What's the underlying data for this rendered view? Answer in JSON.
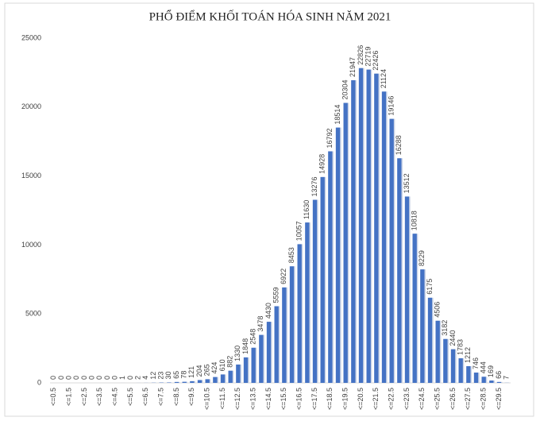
{
  "chart_data": {
    "type": "bar",
    "title": "PHỔ ĐIỂM KHỐI TOÁN HÓA SINH NĂM 2021",
    "categories": [
      "<=0.5",
      null,
      "<=1.5",
      null,
      "<=2.5",
      null,
      "<=3.5",
      null,
      "<=4.5",
      null,
      "<=5.5",
      null,
      "<=6.5",
      null,
      "<=7.5",
      null,
      "<=8.5",
      null,
      "<=9.5",
      null,
      "<=10.5",
      null,
      "<=11.5",
      null,
      "<=12.5",
      null,
      "<=13.5",
      null,
      "<=14.5",
      null,
      "<=15.5",
      null,
      "<=16.5",
      null,
      "<=17.5",
      null,
      "<=18.5",
      null,
      "<=19.5",
      null,
      "<=20.5",
      null,
      "<=21.5",
      null,
      "<=22.5",
      null,
      "<=23.5",
      null,
      "<=24.5",
      null,
      "<=25.5",
      null,
      "<=26.5",
      null,
      "<=27.5",
      null,
      "<=28.5",
      null,
      "<=29.5",
      null
    ],
    "values": [
      0,
      0,
      0,
      0,
      0,
      0,
      0,
      0,
      0,
      1,
      0,
      2,
      4,
      12,
      23,
      30,
      65,
      78,
      121,
      204,
      265,
      424,
      610,
      882,
      1330,
      1848,
      2548,
      3478,
      4430,
      5559,
      6922,
      8453,
      10057,
      11630,
      13276,
      14928,
      16792,
      18514,
      20304,
      21947,
      22826,
      22719,
      22426,
      21124,
      19146,
      16288,
      13512,
      10818,
      8229,
      6175,
      4506,
      3182,
      2440,
      1783,
      1212,
      746,
      444,
      169,
      66,
      7
    ],
    "color": "#4472c4",
    "ylim": [
      0,
      25000
    ],
    "yticks": [
      0,
      5000,
      10000,
      15000,
      20000,
      25000
    ],
    "grid": false
  }
}
